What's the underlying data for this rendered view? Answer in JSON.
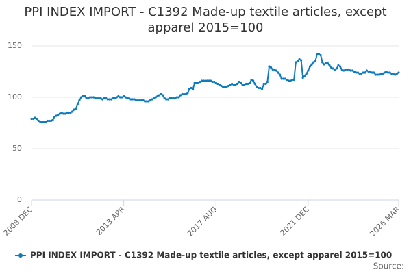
{
  "chart_data": {
    "type": "line",
    "title": "PPI INDEX IMPORT - C1392 Made-up textile articles, except apparel 2015=100",
    "source_label": "Source:",
    "categories": [
      "2008 DEC",
      null,
      null,
      null,
      null,
      null,
      null,
      null,
      null,
      null,
      null,
      null,
      null,
      null,
      null,
      null,
      null,
      null,
      null,
      null,
      null,
      null,
      null,
      null,
      null,
      null,
      null,
      null,
      null,
      null,
      null,
      null,
      null,
      null,
      null,
      null,
      null,
      null,
      null,
      null,
      null,
      null,
      null,
      null,
      null,
      null,
      null,
      null,
      null,
      null,
      null,
      null,
      "2013 APR",
      null,
      null,
      null,
      null,
      null,
      null,
      null,
      null,
      null,
      null,
      null,
      null,
      null,
      null,
      null,
      null,
      null,
      null,
      null,
      null,
      null,
      null,
      null,
      null,
      null,
      null,
      null,
      null,
      null,
      null,
      null,
      null,
      null,
      null,
      null,
      null,
      null,
      null,
      null,
      null,
      null,
      null,
      null,
      null,
      null,
      null,
      null,
      null,
      null,
      null,
      null,
      "2017 AUG",
      null,
      null,
      null,
      null,
      null,
      null,
      null,
      null,
      null,
      null,
      null,
      null,
      null,
      null,
      null,
      null,
      null,
      null,
      null,
      null,
      null,
      null,
      null,
      null,
      null,
      null,
      null,
      null,
      null,
      null,
      null,
      null,
      null,
      null,
      null,
      null,
      null,
      null,
      null,
      null,
      null,
      null,
      null,
      null,
      null,
      null,
      null,
      null,
      null,
      null,
      null,
      "2021 DEC",
      null,
      null,
      null,
      null,
      null,
      null,
      null,
      null,
      null,
      null,
      null,
      null,
      null,
      null,
      null,
      null,
      null,
      null,
      null,
      null,
      null,
      null,
      null,
      null,
      null,
      null,
      null,
      null,
      null,
      null,
      null,
      null,
      null,
      null,
      null,
      null,
      null,
      null,
      null,
      null,
      null,
      null,
      null,
      null,
      null,
      null,
      null,
      null,
      null,
      null,
      "2026 MAR"
    ],
    "series": [
      {
        "name": "PPI INDEX IMPORT - C1392 Made-up textile articles, except apparel 2015=100",
        "color": "#0f7bbf",
        "values": [
          79,
          79,
          80,
          79,
          77,
          76,
          76,
          76,
          76,
          77,
          77,
          77,
          78,
          81,
          82,
          83,
          84,
          85,
          84,
          84,
          85,
          85,
          85,
          86,
          88,
          89,
          93,
          97,
          100,
          101,
          101,
          99,
          99,
          100,
          100,
          100,
          99,
          99,
          99,
          99,
          98,
          99,
          99,
          98,
          98,
          98,
          99,
          99,
          100,
          101,
          100,
          100,
          101,
          100,
          99,
          99,
          98,
          98,
          98,
          97,
          97,
          97,
          97,
          97,
          96,
          96,
          96,
          97,
          98,
          99,
          100,
          101,
          102,
          103,
          102,
          99,
          98,
          98,
          99,
          99,
          99,
          99,
          100,
          100,
          102,
          103,
          103,
          103,
          104,
          108,
          109,
          108,
          114,
          114,
          114,
          115,
          116,
          116,
          116,
          116,
          116,
          116,
          115,
          115,
          114,
          113,
          112,
          111,
          110,
          110,
          110,
          111,
          112,
          113,
          112,
          112,
          113,
          115,
          114,
          112,
          112,
          113,
          113,
          114,
          117,
          116,
          113,
          110,
          109,
          109,
          108,
          113,
          113,
          115,
          130,
          129,
          127,
          127,
          126,
          124,
          122,
          118,
          118,
          118,
          117,
          116,
          116,
          117,
          117,
          134,
          135,
          137,
          136,
          119,
          121,
          123,
          126,
          130,
          132,
          134,
          135,
          142,
          142,
          141,
          134,
          132,
          133,
          133,
          131,
          129,
          128,
          127,
          128,
          131,
          130,
          127,
          126,
          127,
          127,
          127,
          126,
          126,
          125,
          124,
          124,
          123,
          123,
          124,
          124,
          126,
          125,
          125,
          124,
          124,
          122,
          122,
          122,
          123,
          123,
          124,
          125,
          124,
          124,
          123,
          123,
          122,
          123,
          124
        ]
      }
    ],
    "ylim": [
      0,
      150
    ],
    "yticks": [
      0,
      50,
      100,
      150
    ],
    "grid": true
  }
}
